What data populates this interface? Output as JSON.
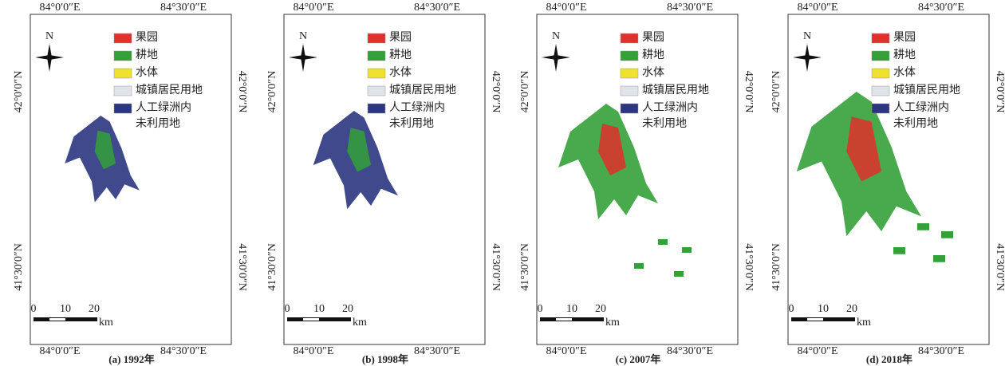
{
  "north": "N",
  "legend": [
    {
      "label": "果园",
      "color": "#e0302c"
    },
    {
      "label": "耕地",
      "color": "#34a03a"
    },
    {
      "label": "水体",
      "color": "#f0e030"
    },
    {
      "label": "城镇居民用地",
      "color": "#dfe3ea"
    },
    {
      "label": "人工绿洲内",
      "color": "#2b3580"
    }
  ],
  "legend_extra": "未利用地",
  "scale": {
    "ticks": [
      "0",
      "10",
      "20"
    ],
    "unit": "km"
  },
  "panels": [
    {
      "caption": "(a) 1992年",
      "top": [
        "84°0′0″E",
        "84°30′0″E"
      ],
      "bottom": [
        "84°0′0″E",
        "84°30′0″E"
      ],
      "left": [
        "42°0′0″N",
        "41°30′0″N"
      ],
      "right": [
        "42°0′0″N",
        "41°30′0″N"
      ]
    },
    {
      "caption": "(b) 1998年",
      "top": [
        "84°0′0″E",
        "84°30′0″E"
      ],
      "bottom": [
        "84°0′0″E",
        "84°30′0″E"
      ],
      "left": [
        "42°0′0″N",
        "41°30′0″N"
      ],
      "right": [
        "42°0′0″N",
        "41°30′0″N"
      ]
    },
    {
      "caption": "(c) 2007年",
      "top": [
        "84°0′0″E",
        "84°30′0″E"
      ],
      "bottom": [
        "84°0′0″E",
        "84°30′0″E"
      ],
      "left": [
        "42°0′0″N",
        "41°30′0″N"
      ],
      "right": [
        "42°0′0″N",
        "41°30′0″N"
      ]
    },
    {
      "caption": "(d) 2018年",
      "top": [
        "84°0′0″E",
        "84°30′0″E"
      ],
      "bottom": [
        "84°0′0″E",
        "84°30′0″E"
      ],
      "left": [
        "42°0′0″N",
        "41°30′0″N"
      ],
      "right": [
        "42°0′0″N",
        "41°30′0″N"
      ]
    }
  ]
}
